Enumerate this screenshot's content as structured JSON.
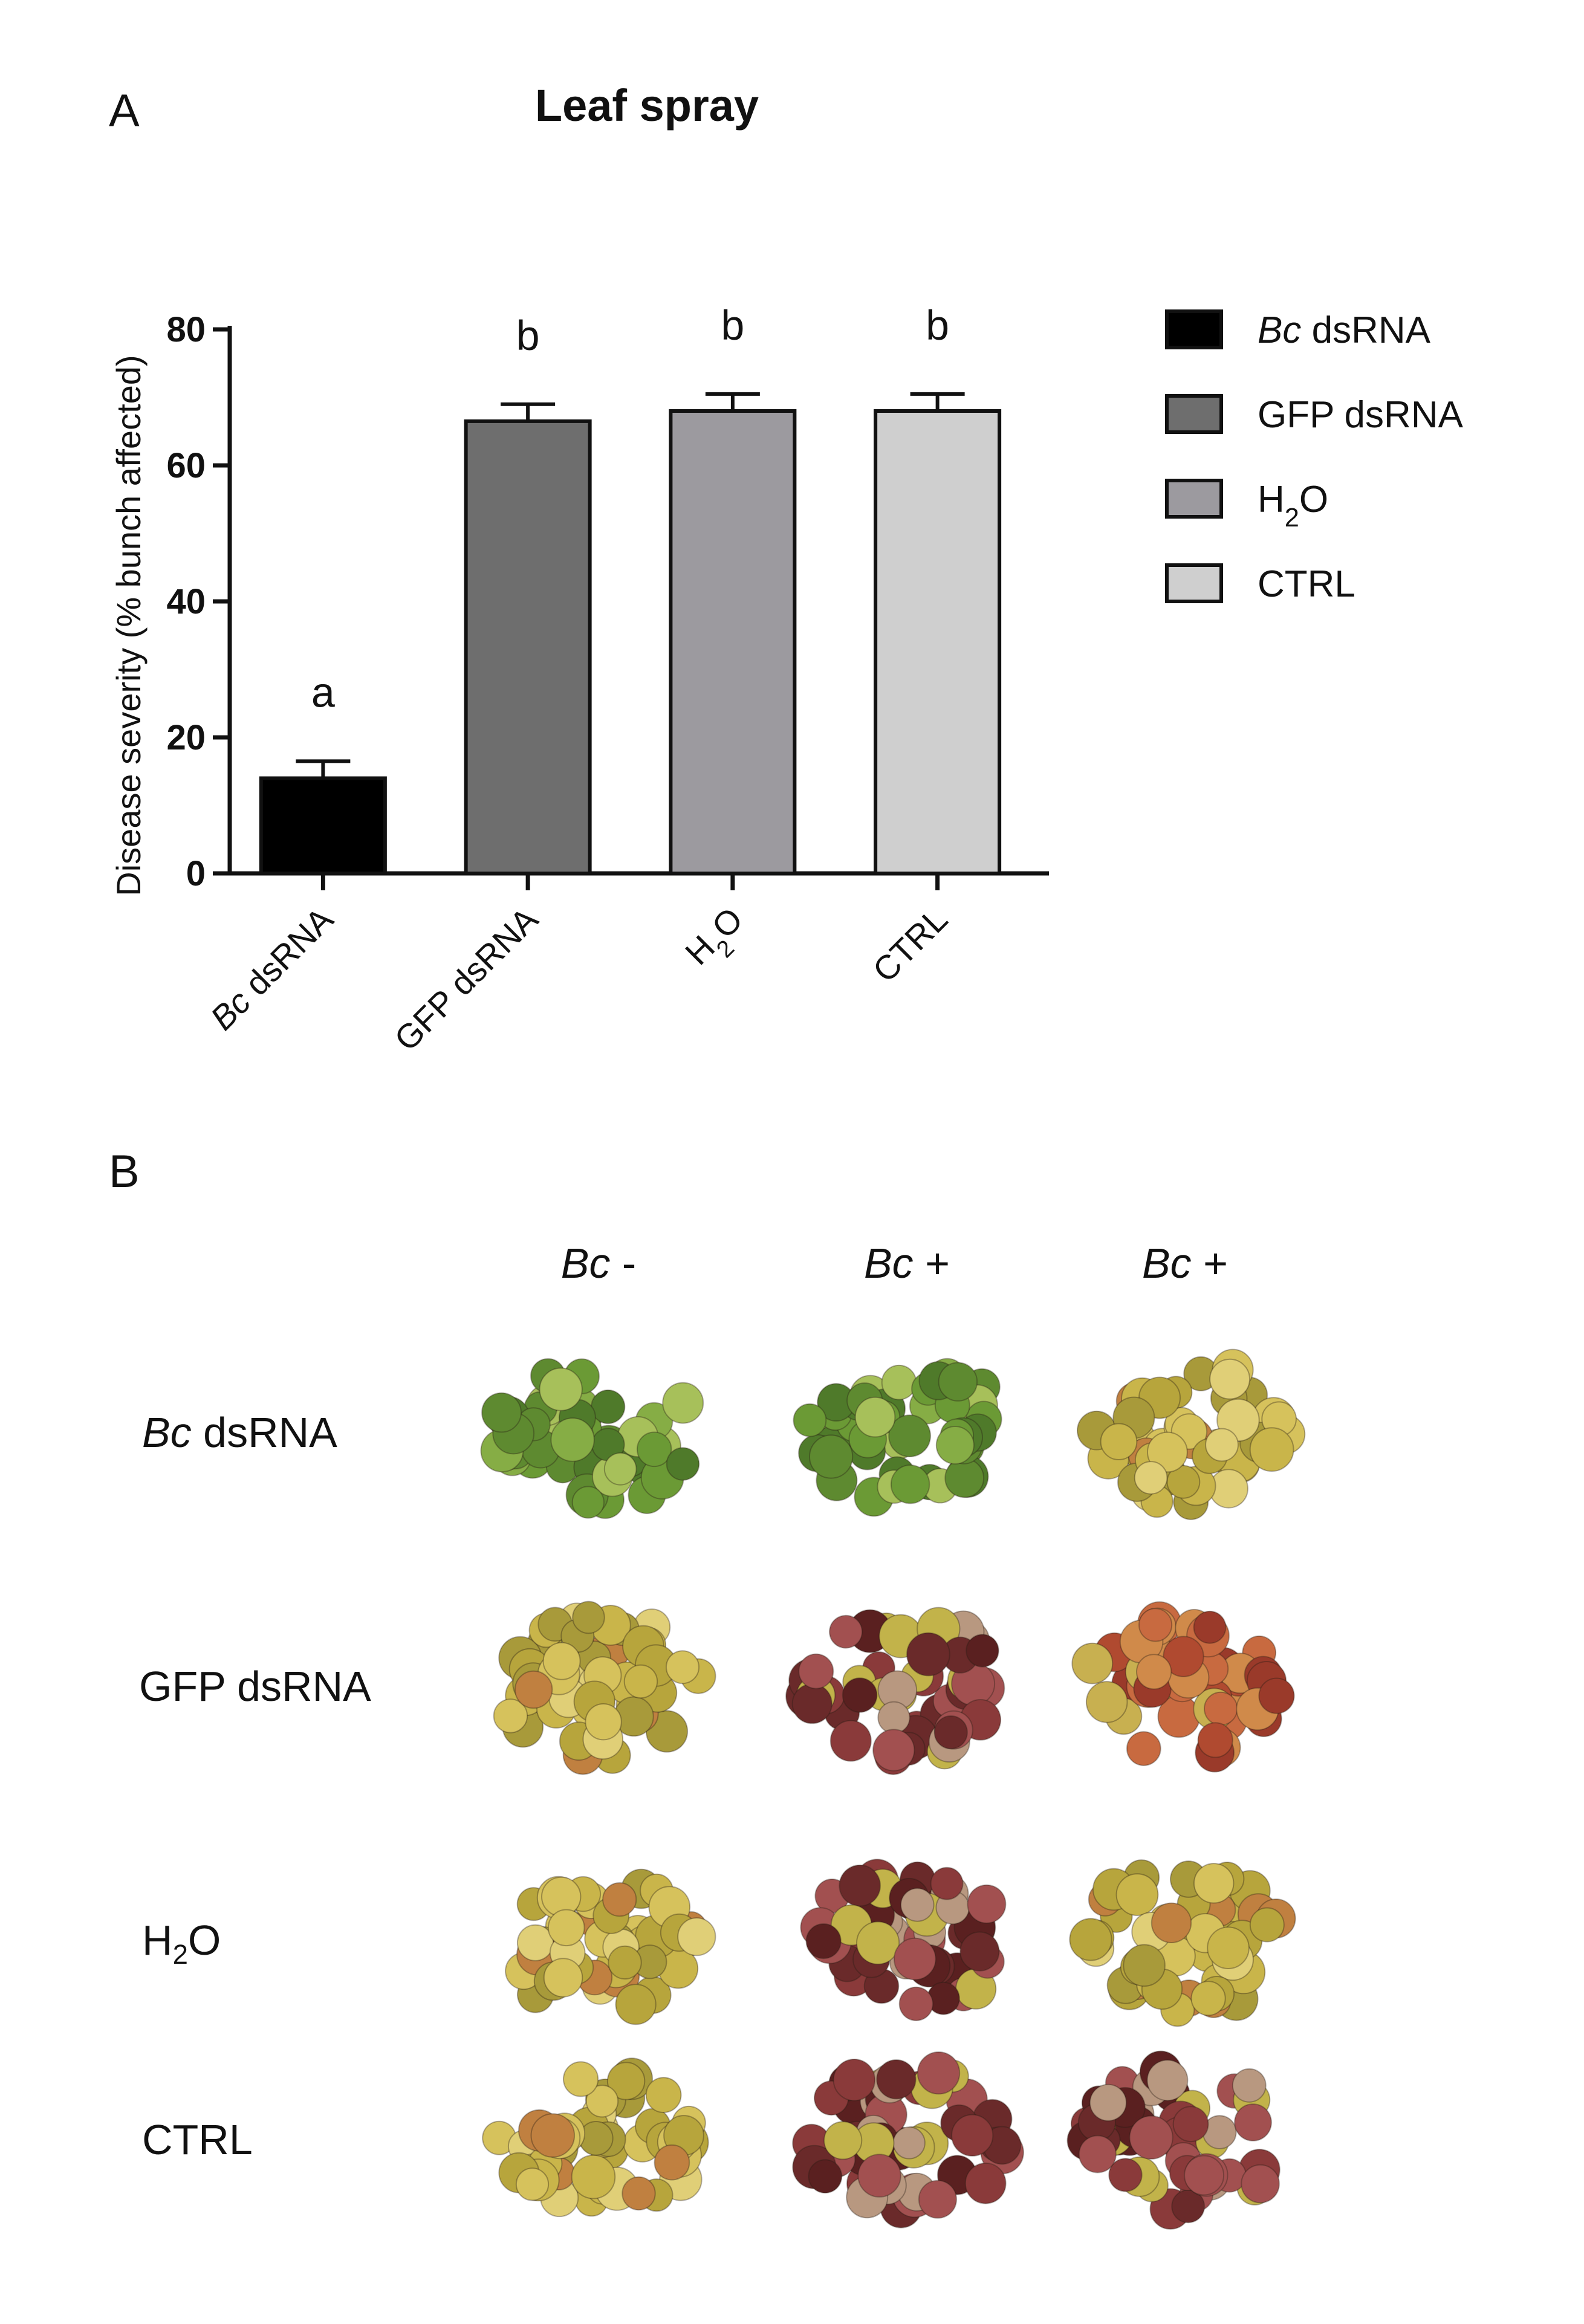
{
  "panel_a_letter": "A",
  "panel_b_letter": "B",
  "chart_data": {
    "type": "bar",
    "title": "Leaf spray",
    "ylabel": "Disease severity (% bunch affected)",
    "xlabel": "",
    "ylim": [
      0,
      80
    ],
    "yticks": [
      "0",
      "20",
      "40",
      "60",
      "80"
    ],
    "categories": [
      "Bc dsRNA",
      "GFP dsRNA",
      "H2O",
      "CTRL"
    ],
    "category_labels": [
      {
        "italic": "Bc",
        "rest": " dsRNA"
      },
      {
        "italic": "",
        "rest": "GFP dsRNA"
      },
      {
        "italic": "",
        "rest": "H",
        "sub": "2",
        "after": "O"
      },
      {
        "italic": "",
        "rest": "CTRL"
      }
    ],
    "values": [
      14,
      66.5,
      68,
      68
    ],
    "errors": [
      2.5,
      2.5,
      2.5,
      2.5
    ],
    "significance": [
      "a",
      "b",
      "b",
      "b"
    ],
    "colors": [
      "#000000",
      "#6e6e6e",
      "#9c9a9f",
      "#cfcfcf"
    ],
    "legend": [
      {
        "italic": "Bc",
        "rest": " dsRNA",
        "color": "#000000"
      },
      {
        "italic": "",
        "rest": "GFP dsRNA",
        "color": "#6e6e6e"
      },
      {
        "italic": "",
        "rest": "H",
        "sub": "2",
        "after": "O",
        "color": "#9c9a9f"
      },
      {
        "italic": "",
        "rest": "CTRL",
        "color": "#cfcfcf"
      }
    ],
    "legend_position": "right"
  },
  "photos": {
    "column_labels": [
      {
        "italic": "Bc",
        "rest": " -"
      },
      {
        "italic": "Bc",
        "rest": " +"
      },
      {
        "italic": "Bc",
        "rest": " +"
      }
    ],
    "row_labels": [
      {
        "italic": "Bc",
        "rest": " dsRNA"
      },
      {
        "italic": "",
        "rest": "GFP dsRNA"
      },
      {
        "italic": "",
        "rest": "H",
        "sub": "2",
        "after": "O"
      },
      {
        "italic": "",
        "rest": "CTRL"
      }
    ],
    "bunch_condition": [
      [
        "green",
        "green",
        "ripe"
      ],
      [
        "ripe",
        "rotten",
        "reddish"
      ],
      [
        "ripe",
        "rotten",
        "ripe"
      ],
      [
        "ripe",
        "rotten",
        "rotten"
      ]
    ]
  }
}
